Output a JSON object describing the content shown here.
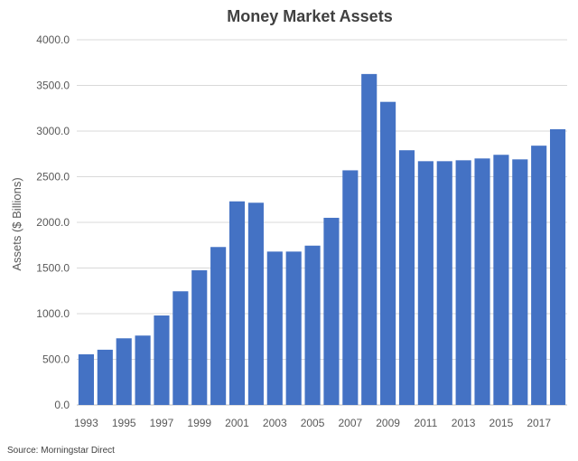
{
  "chart_data": {
    "type": "bar",
    "title": "Money Market Assets",
    "ylabel": "Assets ($ Billions)",
    "xlabel": "",
    "ylim": [
      0,
      4000
    ],
    "yticks": [
      "0.0",
      "500.0",
      "1000.0",
      "1500.0",
      "2000.0",
      "2500.0",
      "3000.0",
      "3500.0",
      "4000.0"
    ],
    "categories": [
      "1993",
      "1994",
      "1995",
      "1996",
      "1997",
      "1998",
      "1999",
      "2000",
      "2001",
      "2002",
      "2003",
      "2004",
      "2005",
      "2006",
      "2007",
      "2008",
      "2009",
      "2010",
      "2011",
      "2012",
      "2013",
      "2014",
      "2015",
      "2016",
      "2017",
      "2018"
    ],
    "x_tick_labels": [
      "1993",
      "1995",
      "1997",
      "1999",
      "2001",
      "2003",
      "2005",
      "2007",
      "2009",
      "2011",
      "2013",
      "2015",
      "2017"
    ],
    "values": [
      555,
      605,
      730,
      760,
      980,
      1245,
      1475,
      1730,
      2230,
      2215,
      1680,
      1680,
      1745,
      2050,
      2570,
      3625,
      3320,
      2790,
      2670,
      2670,
      2680,
      2700,
      2740,
      2690,
      2840,
      3020
    ],
    "bar_color": "#4472C4",
    "grid": true,
    "legend": "none"
  },
  "source": "Source: Morningstar Direct"
}
